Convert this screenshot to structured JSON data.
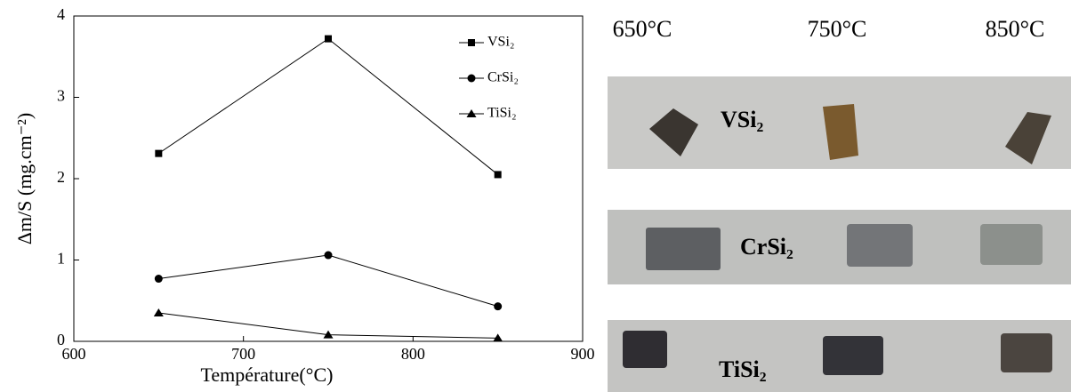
{
  "chart_data": {
    "type": "line",
    "x_label": "Température(°C)",
    "y_label": "Δm/S (mg.cm⁻²)",
    "x": [
      650,
      750,
      850
    ],
    "series": [
      {
        "name": "VSi₂",
        "color": "#000000",
        "marker": "square",
        "values": [
          2.31,
          3.72,
          2.05
        ]
      },
      {
        "name": "CrSi₂",
        "color": "#000000",
        "marker": "circle",
        "values": [
          0.77,
          1.06,
          0.43
        ]
      },
      {
        "name": "TiSi₂",
        "color": "#000000",
        "marker": "triangle",
        "values": [
          0.35,
          0.08,
          0.04
        ]
      }
    ],
    "xlim": [
      600,
      900
    ],
    "xticks": [
      600,
      700,
      800,
      900
    ],
    "ylim": [
      0,
      4
    ],
    "yticks": [
      0,
      1,
      2,
      3,
      4
    ],
    "legend": "upper right"
  },
  "photo": {
    "temperatures": [
      "650°C",
      "750°C",
      "850°C"
    ],
    "samples": [
      "VSi₂",
      "CrSi₂",
      "TiSi₂"
    ]
  }
}
